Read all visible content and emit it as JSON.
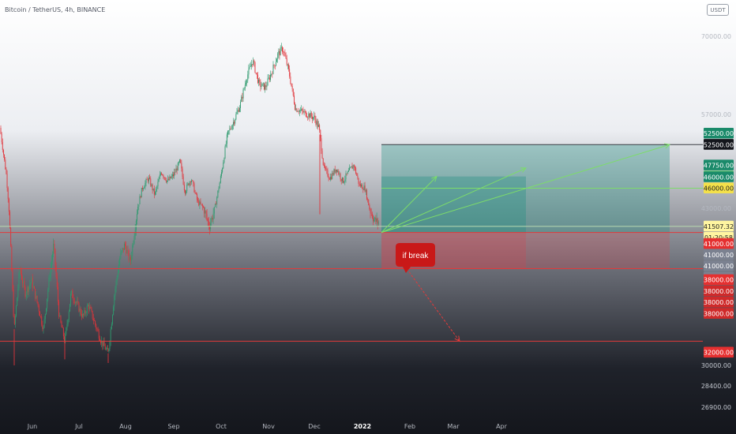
{
  "symbol": "Bitcoin / TetherUS, 4h, BINANCE",
  "currency": "USDT",
  "annotation": "if break",
  "chart_data": {
    "type": "candlestick",
    "y_axis_ticks": [
      "70000.00",
      "57000.00",
      "43000.00",
      "30000.00",
      "28400.00",
      "26900.00"
    ],
    "x_axis_ticks": [
      "Jun",
      "Jul",
      "Aug",
      "Sep",
      "Oct",
      "Nov",
      "Dec",
      "2022",
      "Feb",
      "Mar",
      "Apr"
    ],
    "series_path": [
      [
        0,
        55000
      ],
      [
        8,
        48000
      ],
      [
        18,
        33000
      ],
      [
        25,
        38000
      ],
      [
        32,
        36000
      ],
      [
        40,
        37000
      ],
      [
        48,
        35000
      ],
      [
        55,
        33000
      ],
      [
        62,
        37000
      ],
      [
        68,
        40000
      ],
      [
        75,
        34000
      ],
      [
        82,
        32000
      ],
      [
        90,
        36000
      ],
      [
        98,
        35000
      ],
      [
        105,
        34000
      ],
      [
        112,
        35000
      ],
      [
        120,
        33500
      ],
      [
        128,
        32000
      ],
      [
        137,
        31000
      ],
      [
        145,
        36000
      ],
      [
        152,
        39000
      ],
      [
        158,
        40000
      ],
      [
        165,
        38500
      ],
      [
        172,
        42000
      ],
      [
        180,
        46000
      ],
      [
        188,
        47500
      ],
      [
        196,
        45000
      ],
      [
        204,
        48500
      ],
      [
        212,
        47000
      ],
      [
        220,
        48000
      ],
      [
        228,
        50000
      ],
      [
        234,
        45500
      ],
      [
        242,
        47500
      ],
      [
        250,
        44000
      ],
      [
        258,
        43000
      ],
      [
        265,
        41500
      ],
      [
        272,
        43000
      ],
      [
        280,
        48000
      ],
      [
        288,
        54000
      ],
      [
        296,
        56000
      ],
      [
        304,
        58500
      ],
      [
        312,
        63000
      ],
      [
        320,
        66000
      ],
      [
        328,
        62000
      ],
      [
        336,
        61500
      ],
      [
        344,
        64000
      ],
      [
        352,
        67000
      ],
      [
        358,
        68000
      ],
      [
        366,
        64000
      ],
      [
        374,
        58000
      ],
      [
        382,
        57500
      ],
      [
        390,
        57000
      ],
      [
        398,
        56500
      ],
      [
        404,
        55000
      ],
      [
        410,
        49000
      ],
      [
        418,
        47500
      ],
      [
        426,
        49000
      ],
      [
        434,
        47000
      ],
      [
        442,
        48500
      ],
      [
        448,
        49500
      ],
      [
        455,
        46500
      ],
      [
        462,
        46000
      ],
      [
        468,
        43000
      ],
      [
        474,
        42000
      ],
      [
        480,
        41800
      ]
    ],
    "spikes": [
      {
        "x": 18,
        "low": 30000
      },
      {
        "x": 82,
        "low": 30500
      },
      {
        "x": 137,
        "low": 30200
      },
      {
        "x": 262,
        "low": 42000
      },
      {
        "x": 405,
        "low": 42500
      }
    ],
    "horizontal_lines": [
      {
        "price": 52500,
        "color": "#3a3d44"
      },
      {
        "price": 46000,
        "color": "#7ddc6a"
      },
      {
        "price": 41507.32,
        "color": "#b9d9b0"
      },
      {
        "price": 41000,
        "color": "#e23a3a"
      },
      {
        "price": 38000,
        "color": "#e23a3a"
      },
      {
        "price": 32000,
        "color": "#e23a3a"
      }
    ],
    "position_boxes": [
      {
        "x0": 483,
        "x1": 848,
        "profit_top": 52500,
        "entry": 41000,
        "stop": 38000
      },
      {
        "x0": 483,
        "x1": 666,
        "profit_top": 47750,
        "entry": 41000,
        "stop": 38000
      }
    ],
    "target_arrows": [
      {
        "x0": 483,
        "y0": 41000,
        "x1": 553,
        "y1": 47750
      },
      {
        "x0": 483,
        "y0": 41000,
        "x1": 666,
        "y1": 49000
      },
      {
        "x0": 483,
        "y0": 41000,
        "x1": 848,
        "y1": 52500
      }
    ],
    "break_arrow": {
      "x0": 515,
      "y0": 38000,
      "x1": 582,
      "y1": 32000
    },
    "price_labels": [
      {
        "text": "52500.00",
        "price": 52500,
        "bg": "#1a8a6a",
        "fg": "#ffffff",
        "dy": -1
      },
      {
        "text": "52500.00",
        "price": 52500,
        "bg": "#14161c",
        "fg": "#ffffff",
        "dy": 0
      },
      {
        "text": "47750.00",
        "price": 47750,
        "bg": "#1a8a6a",
        "fg": "#ffffff",
        "dy": -1
      },
      {
        "text": "47750.00",
        "price": 47750,
        "bg": "#5cd65c",
        "fg": "#0b3a0b",
        "dy": 0
      },
      {
        "text": "46000.00",
        "price": 46000,
        "bg": "#1a8a6a",
        "fg": "#ffffff",
        "dy": -1
      },
      {
        "text": "46000.00",
        "price": 46000,
        "bg": "#f4e14a",
        "fg": "#1f1f1f",
        "dy": 0
      },
      {
        "text": "41507.32",
        "price": 41507.32,
        "bg": "#fff5a0",
        "fg": "#1f1f1f",
        "dy": 0
      },
      {
        "text": "01:20:58",
        "price": 41507.32,
        "bg": "#fff5a0",
        "fg": "#1f1f1f",
        "dy": 1
      },
      {
        "text": "41000.00",
        "price": 41000,
        "bg": "#e53030",
        "fg": "#ffffff",
        "dy": 1
      },
      {
        "text": "41000.00",
        "price": 41000,
        "bg": "#7b8190",
        "fg": "#ffffff",
        "dy": 2
      },
      {
        "text": "41000.00",
        "price": 41000,
        "bg": "#7b8190",
        "fg": "#ffffff",
        "dy": 3
      },
      {
        "text": "41000.00",
        "price": 41000,
        "bg": "#7b8190",
        "fg": "#ffffff",
        "dy": 4
      },
      {
        "text": "38000.00",
        "price": 38000,
        "bg": "#e53030",
        "fg": "#ffffff",
        "dy": 1
      },
      {
        "text": "38000.00",
        "price": 38000,
        "bg": "#cf2a2a",
        "fg": "#ffffff",
        "dy": 2
      },
      {
        "text": "38000.00",
        "price": 38000,
        "bg": "#cf2a2a",
        "fg": "#ffffff",
        "dy": 3
      },
      {
        "text": "38000.00",
        "price": 38000,
        "bg": "#cf2a2a",
        "fg": "#ffffff",
        "dy": 4
      },
      {
        "text": "32000.00",
        "price": 32000,
        "bg": "#e53030",
        "fg": "#ffffff",
        "dy": 1
      }
    ]
  }
}
